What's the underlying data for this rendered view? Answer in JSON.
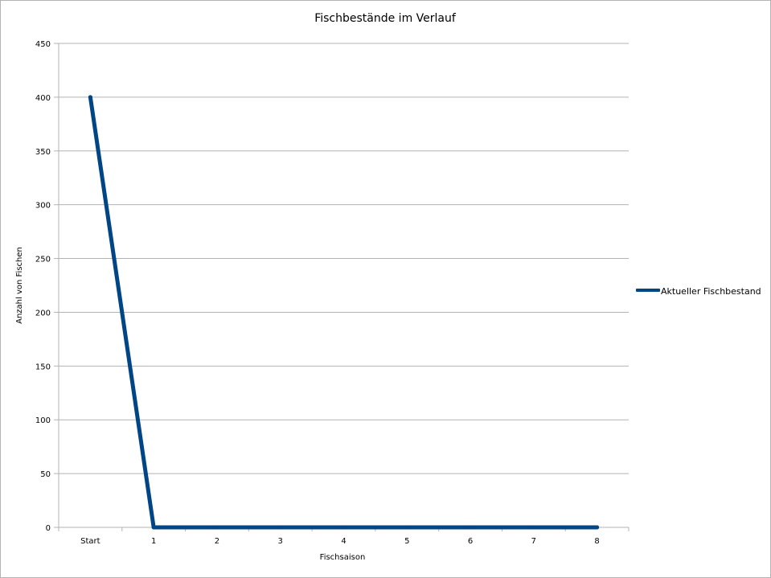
{
  "chart_data": {
    "type": "line",
    "title": "Fischbestände im Verlauf",
    "xlabel": "Fischsaison",
    "ylabel": "Anzahl von Fischen",
    "categories": [
      "Start",
      "1",
      "2",
      "3",
      "4",
      "5",
      "6",
      "7",
      "8"
    ],
    "series": [
      {
        "name": "Aktueller Fischbestand",
        "values": [
          400,
          0,
          0,
          0,
          0,
          0,
          0,
          0,
          0
        ],
        "color": "#004586"
      }
    ],
    "ylim": [
      0,
      450
    ],
    "yticks": [
      0,
      50,
      100,
      150,
      200,
      250,
      300,
      350,
      400,
      450
    ],
    "grid": true,
    "legend_position": "right"
  }
}
